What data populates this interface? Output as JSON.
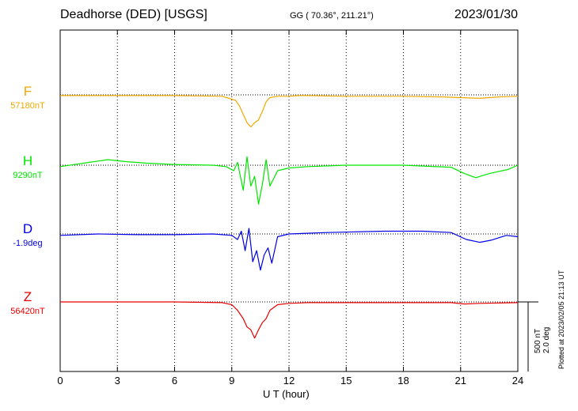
{
  "header": {
    "station": "Deadhorse (DED)  [USGS]",
    "coords": "GG ( 70.36°, 211.21°)",
    "date": "2023/01/30"
  },
  "plotted": "Plotted at 2023/02/05 21:13 UT",
  "scale": {
    "line1": "500 nT",
    "line2": "2.0 deg"
  },
  "chart_data": {
    "type": "line",
    "xlabel": "U T (hour)",
    "xlim": [
      0,
      24
    ],
    "xticks": [
      0,
      3,
      6,
      9,
      12,
      15,
      18,
      21,
      24
    ],
    "grid": "vertical dotted every 3 h",
    "series": [
      {
        "name": "F",
        "baseline_label": "57180nT",
        "color": "#f0a800",
        "x": [
          0,
          3,
          6,
          8.5,
          9.2,
          9.4,
          9.6,
          9.8,
          10,
          10.2,
          10.4,
          10.6,
          10.8,
          11,
          11.4,
          12,
          12.5,
          13,
          15,
          18,
          20,
          21,
          22,
          23,
          24
        ],
        "y": [
          -5,
          -5,
          -5,
          -10,
          -40,
          -80,
          -140,
          -200,
          -230,
          -200,
          -180,
          -120,
          -50,
          -20,
          -10,
          -10,
          -5,
          -5,
          -10,
          -10,
          -15,
          -20,
          -25,
          -15,
          -10
        ]
      },
      {
        "name": "H",
        "baseline_label": "9290nT",
        "color": "#00e600",
        "x": [
          0,
          1.5,
          2.5,
          3.5,
          4.5,
          6,
          8,
          8.7,
          9.1,
          9.3,
          9.6,
          9.8,
          10,
          10.2,
          10.4,
          10.6,
          10.8,
          11,
          11.4,
          12,
          13,
          15,
          18,
          20.5,
          21.2,
          21.8,
          22.5,
          23.5,
          24
        ],
        "y": [
          -10,
          20,
          40,
          25,
          15,
          5,
          0,
          -10,
          -40,
          20,
          -180,
          60,
          -150,
          -80,
          -280,
          -140,
          40,
          -150,
          -40,
          -20,
          -10,
          0,
          0,
          -15,
          -60,
          -90,
          -60,
          -30,
          0
        ]
      },
      {
        "name": "D",
        "baseline_label": "-1.9deg",
        "color": "#0000e6",
        "x": [
          0,
          2,
          4,
          6,
          8,
          9,
          9.3,
          9.5,
          9.7,
          9.9,
          10.1,
          10.3,
          10.5,
          10.7,
          10.9,
          11.1,
          11.4,
          12,
          14,
          17,
          19,
          20.5,
          21.3,
          22,
          22.6,
          23.4,
          24
        ],
        "y": [
          -10,
          0,
          -5,
          -5,
          0,
          -10,
          -40,
          20,
          -120,
          40,
          -200,
          -120,
          -260,
          -150,
          -100,
          -210,
          -20,
          0,
          10,
          20,
          20,
          10,
          -40,
          -60,
          -45,
          -10,
          -20
        ]
      },
      {
        "name": "Z",
        "baseline_label": "56420nT",
        "color": "#e60000",
        "x": [
          0,
          3,
          6,
          8.5,
          9.0,
          9.3,
          9.6,
          9.8,
          10,
          10.2,
          10.4,
          10.6,
          10.8,
          11.0,
          11.4,
          12,
          13,
          15,
          18,
          20.5,
          21.2,
          22,
          24
        ],
        "y": [
          0,
          0,
          0,
          -5,
          -20,
          -60,
          -120,
          -180,
          -200,
          -260,
          -200,
          -150,
          -120,
          -60,
          -20,
          -10,
          -5,
          -5,
          -5,
          -5,
          -15,
          -10,
          -5
        ]
      }
    ]
  }
}
